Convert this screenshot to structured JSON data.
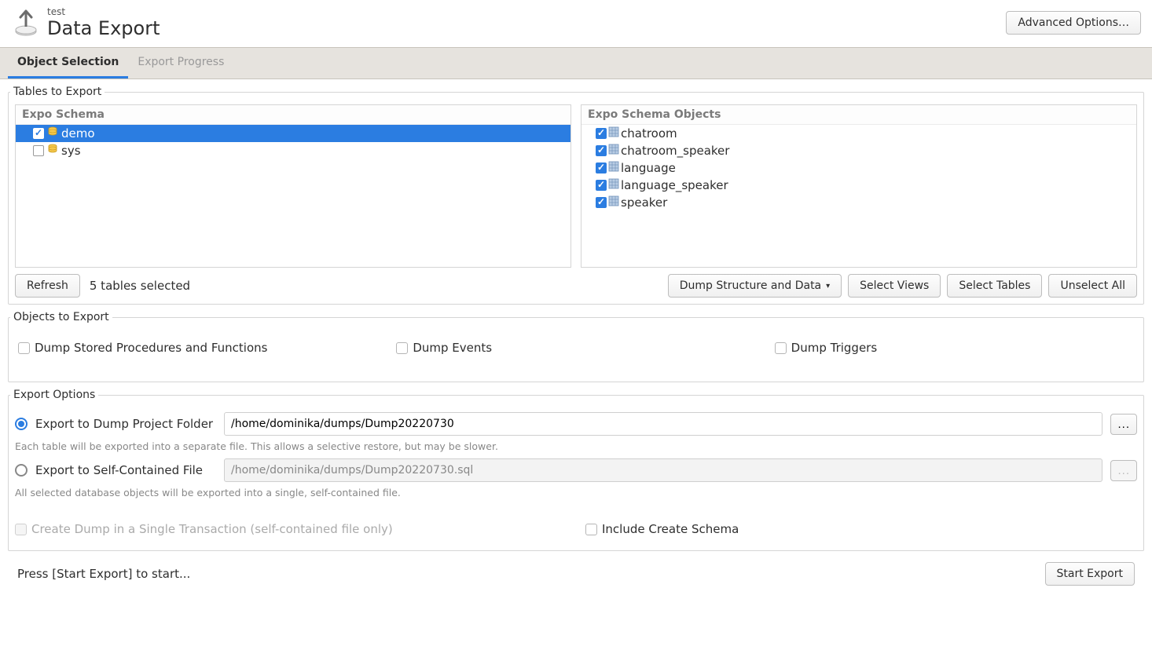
{
  "header": {
    "subtitle": "test",
    "title": "Data Export",
    "advanced_button": "Advanced Options…"
  },
  "tabs": {
    "object_selection": "Object Selection",
    "export_progress": "Export Progress"
  },
  "tables_section": {
    "legend": "Tables to Export",
    "schema_header": "Expo Schema",
    "objects_header": "Expo Schema Objects",
    "schemas": [
      {
        "name": "demo",
        "checked": true,
        "selected": true
      },
      {
        "name": "sys",
        "checked": false,
        "selected": false
      }
    ],
    "objects": [
      {
        "name": "chatroom",
        "checked": true
      },
      {
        "name": "chatroom_speaker",
        "checked": true
      },
      {
        "name": "language",
        "checked": true
      },
      {
        "name": "language_speaker",
        "checked": true
      },
      {
        "name": "speaker",
        "checked": true
      }
    ],
    "refresh_button": "Refresh",
    "status": "5 tables selected",
    "dump_dropdown": "Dump Structure and Data",
    "select_views_button": "Select Views",
    "select_tables_button": "Select Tables",
    "unselect_all_button": "Unselect All"
  },
  "objects_section": {
    "legend": "Objects to Export",
    "dump_procedures": "Dump Stored Procedures and Functions",
    "dump_events": "Dump Events",
    "dump_triggers": "Dump Triggers"
  },
  "export_options": {
    "legend": "Export Options",
    "folder_radio_label": "Export to Dump Project Folder",
    "folder_path": "/home/dominika/dumps/Dump20220730",
    "folder_hint": "Each table will be exported into a separate file. This allows a selective restore, but may be slower.",
    "file_radio_label": "Export to Self-Contained File",
    "file_path": "/home/dominika/dumps/Dump20220730.sql",
    "file_hint": "All selected database objects will be exported into a single, self-contained file.",
    "single_transaction": "Create Dump in a Single Transaction (self-contained file only)",
    "include_schema": "Include Create Schema",
    "browse": "..."
  },
  "footer": {
    "status": "Press [Start Export] to start...",
    "start_button": "Start Export"
  },
  "colors": {
    "accent": "#2b7de1",
    "tab_bg": "#e6e3de",
    "border": "#d5d5d5"
  }
}
